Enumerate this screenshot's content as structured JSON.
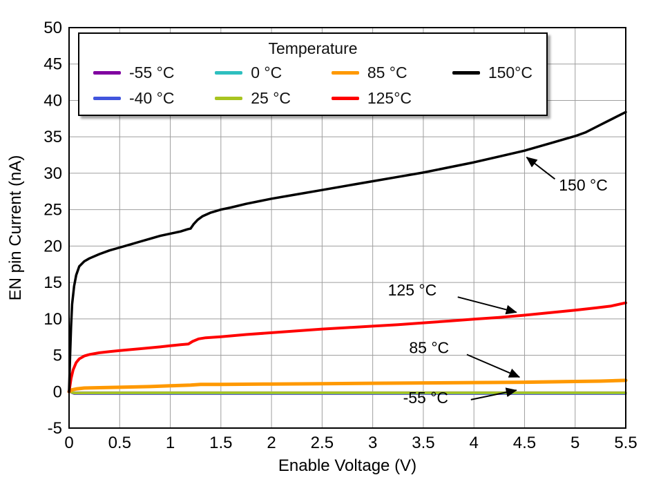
{
  "chart_data": {
    "type": "line",
    "title": "",
    "xlabel": "Enable Voltage (V)",
    "ylabel": "EN pin Current (nA)",
    "xlim": [
      0,
      5.5
    ],
    "ylim": [
      -5,
      50
    ],
    "x_ticks": [
      0,
      0.5,
      1,
      1.5,
      2,
      2.5,
      3,
      3.5,
      4,
      4.5,
      5,
      5.5
    ],
    "x_tick_labels": [
      "0",
      "0.5",
      "1",
      "1.5",
      "2",
      "2.5",
      "3",
      "3.5",
      "4",
      "4.5",
      "5",
      "5.5"
    ],
    "y_ticks": [
      -5,
      0,
      5,
      10,
      15,
      20,
      25,
      30,
      35,
      40,
      45,
      50
    ],
    "y_tick_labels": [
      "-5",
      "0",
      "5",
      "10",
      "15",
      "20",
      "25",
      "30",
      "35",
      "40",
      "45",
      "50"
    ],
    "grid": true,
    "grid_color": "#9e9e9e",
    "frame_color": "#000000",
    "legend": {
      "title": "Temperature",
      "position": "top-left",
      "entries": [
        {
          "label": "-55 °C",
          "color": "#8000A0"
        },
        {
          "label": "-40 °C",
          "color": "#4155DD"
        },
        {
          "label": "0 °C",
          "color": "#2EBFBF"
        },
        {
          "label": "25 °C",
          "color": "#A8C420"
        },
        {
          "label": "85 °C",
          "color": "#FF9900"
        },
        {
          "label": "125°C",
          "color": "#FF0000"
        },
        {
          "label": "150°C",
          "color": "#000000"
        }
      ]
    },
    "series": [
      {
        "name": "-55C",
        "label": "-55 °C",
        "color": "#8000A0",
        "width": 3,
        "points": [
          [
            0,
            0
          ],
          [
            0.05,
            -0.3
          ],
          [
            1,
            -0.3
          ],
          [
            2,
            -0.3
          ],
          [
            3,
            -0.3
          ],
          [
            4,
            -0.3
          ],
          [
            5,
            -0.3
          ],
          [
            5.5,
            -0.3
          ]
        ]
      },
      {
        "name": "-40C",
        "label": "-40 °C",
        "color": "#4155DD",
        "width": 3,
        "points": [
          [
            0,
            0
          ],
          [
            0.05,
            -0.27
          ],
          [
            1,
            -0.27
          ],
          [
            2,
            -0.27
          ],
          [
            3,
            -0.27
          ],
          [
            4,
            -0.27
          ],
          [
            5,
            -0.27
          ],
          [
            5.5,
            -0.27
          ]
        ]
      },
      {
        "name": "0C",
        "label": "0 °C",
        "color": "#2EBFBF",
        "width": 3,
        "points": [
          [
            0,
            0
          ],
          [
            0.05,
            -0.22
          ],
          [
            1,
            -0.22
          ],
          [
            2,
            -0.22
          ],
          [
            3,
            -0.22
          ],
          [
            4,
            -0.22
          ],
          [
            5,
            -0.22
          ],
          [
            5.5,
            -0.22
          ]
        ]
      },
      {
        "name": "25C",
        "label": "25 °C",
        "color": "#A8C420",
        "width": 3.5,
        "points": [
          [
            0,
            0
          ],
          [
            0.05,
            -0.18
          ],
          [
            0.5,
            -0.16
          ],
          [
            1,
            -0.15
          ],
          [
            2,
            -0.15
          ],
          [
            3,
            -0.15
          ],
          [
            4,
            -0.15
          ],
          [
            5,
            -0.15
          ],
          [
            5.5,
            -0.15
          ]
        ]
      },
      {
        "name": "85C",
        "label": "85 °C",
        "color": "#FF9900",
        "width": 5,
        "points": [
          [
            0,
            0
          ],
          [
            0.03,
            0.25
          ],
          [
            0.08,
            0.4
          ],
          [
            0.15,
            0.5
          ],
          [
            0.3,
            0.55
          ],
          [
            0.5,
            0.6
          ],
          [
            0.8,
            0.7
          ],
          [
            1.0,
            0.8
          ],
          [
            1.2,
            0.9
          ],
          [
            1.3,
            1.0
          ],
          [
            1.5,
            1.0
          ],
          [
            2.0,
            1.05
          ],
          [
            2.5,
            1.1
          ],
          [
            3.0,
            1.15
          ],
          [
            3.5,
            1.2
          ],
          [
            4.0,
            1.25
          ],
          [
            4.5,
            1.3
          ],
          [
            5.0,
            1.4
          ],
          [
            5.25,
            1.45
          ],
          [
            5.5,
            1.55
          ]
        ]
      },
      {
        "name": "125C",
        "label": "125°C",
        "color": "#FF0000",
        "width": 4,
        "points": [
          [
            0,
            0
          ],
          [
            0.02,
            1.8
          ],
          [
            0.04,
            3.0
          ],
          [
            0.07,
            4.0
          ],
          [
            0.1,
            4.5
          ],
          [
            0.15,
            4.9
          ],
          [
            0.2,
            5.1
          ],
          [
            0.3,
            5.35
          ],
          [
            0.4,
            5.5
          ],
          [
            0.5,
            5.65
          ],
          [
            0.7,
            5.9
          ],
          [
            0.9,
            6.15
          ],
          [
            1.0,
            6.3
          ],
          [
            1.1,
            6.45
          ],
          [
            1.18,
            6.55
          ],
          [
            1.22,
            6.9
          ],
          [
            1.28,
            7.25
          ],
          [
            1.35,
            7.4
          ],
          [
            1.5,
            7.55
          ],
          [
            1.75,
            7.85
          ],
          [
            2.0,
            8.1
          ],
          [
            2.25,
            8.35
          ],
          [
            2.5,
            8.6
          ],
          [
            2.75,
            8.8
          ],
          [
            3.0,
            9.0
          ],
          [
            3.25,
            9.2
          ],
          [
            3.5,
            9.45
          ],
          [
            3.75,
            9.7
          ],
          [
            4.0,
            9.95
          ],
          [
            4.25,
            10.2
          ],
          [
            4.5,
            10.5
          ],
          [
            4.75,
            10.85
          ],
          [
            5.0,
            11.2
          ],
          [
            5.2,
            11.5
          ],
          [
            5.35,
            11.75
          ],
          [
            5.5,
            12.2
          ]
        ]
      },
      {
        "name": "150C",
        "label": "150°C",
        "color": "#000000",
        "width": 3.5,
        "points": [
          [
            0,
            0
          ],
          [
            0.01,
            5
          ],
          [
            0.02,
            9
          ],
          [
            0.03,
            12
          ],
          [
            0.05,
            14.5
          ],
          [
            0.07,
            16
          ],
          [
            0.1,
            17.2
          ],
          [
            0.15,
            17.9
          ],
          [
            0.2,
            18.3
          ],
          [
            0.3,
            18.9
          ],
          [
            0.4,
            19.4
          ],
          [
            0.5,
            19.8
          ],
          [
            0.6,
            20.2
          ],
          [
            0.7,
            20.6
          ],
          [
            0.8,
            21.0
          ],
          [
            0.9,
            21.4
          ],
          [
            1.0,
            21.7
          ],
          [
            1.1,
            22.0
          ],
          [
            1.17,
            22.3
          ],
          [
            1.2,
            22.4
          ],
          [
            1.23,
            23.0
          ],
          [
            1.27,
            23.6
          ],
          [
            1.32,
            24.1
          ],
          [
            1.4,
            24.6
          ],
          [
            1.5,
            25.0
          ],
          [
            1.6,
            25.3
          ],
          [
            1.75,
            25.8
          ],
          [
            2.0,
            26.5
          ],
          [
            2.25,
            27.1
          ],
          [
            2.5,
            27.7
          ],
          [
            2.75,
            28.3
          ],
          [
            3.0,
            28.9
          ],
          [
            3.25,
            29.5
          ],
          [
            3.5,
            30.1
          ],
          [
            3.75,
            30.8
          ],
          [
            4.0,
            31.5
          ],
          [
            4.25,
            32.3
          ],
          [
            4.5,
            33.1
          ],
          [
            4.75,
            34.1
          ],
          [
            5.0,
            35.1
          ],
          [
            5.1,
            35.6
          ],
          [
            5.2,
            36.3
          ],
          [
            5.3,
            37.0
          ],
          [
            5.4,
            37.7
          ],
          [
            5.5,
            38.4
          ]
        ]
      }
    ],
    "annotations": [
      {
        "text": "150 °C",
        "text_x": 4.84,
        "text_y": 27.6,
        "arrow_from": [
          4.8,
          29.2
        ],
        "arrow_to": [
          4.52,
          32.2
        ]
      },
      {
        "text": "125 °C",
        "text_x": 3.15,
        "text_y": 13.2,
        "arrow_from": [
          3.84,
          13.0
        ],
        "arrow_to": [
          4.42,
          10.9
        ]
      },
      {
        "text": "85 °C",
        "text_x": 3.36,
        "text_y": 5.3,
        "arrow_from": [
          3.93,
          5.1
        ],
        "arrow_to": [
          4.45,
          2.0
        ]
      },
      {
        "text": "-55 °C",
        "text_x": 3.3,
        "text_y": -1.6,
        "arrow_from": [
          3.97,
          -1.1
        ],
        "arrow_to": [
          4.42,
          0.2
        ]
      }
    ]
  }
}
